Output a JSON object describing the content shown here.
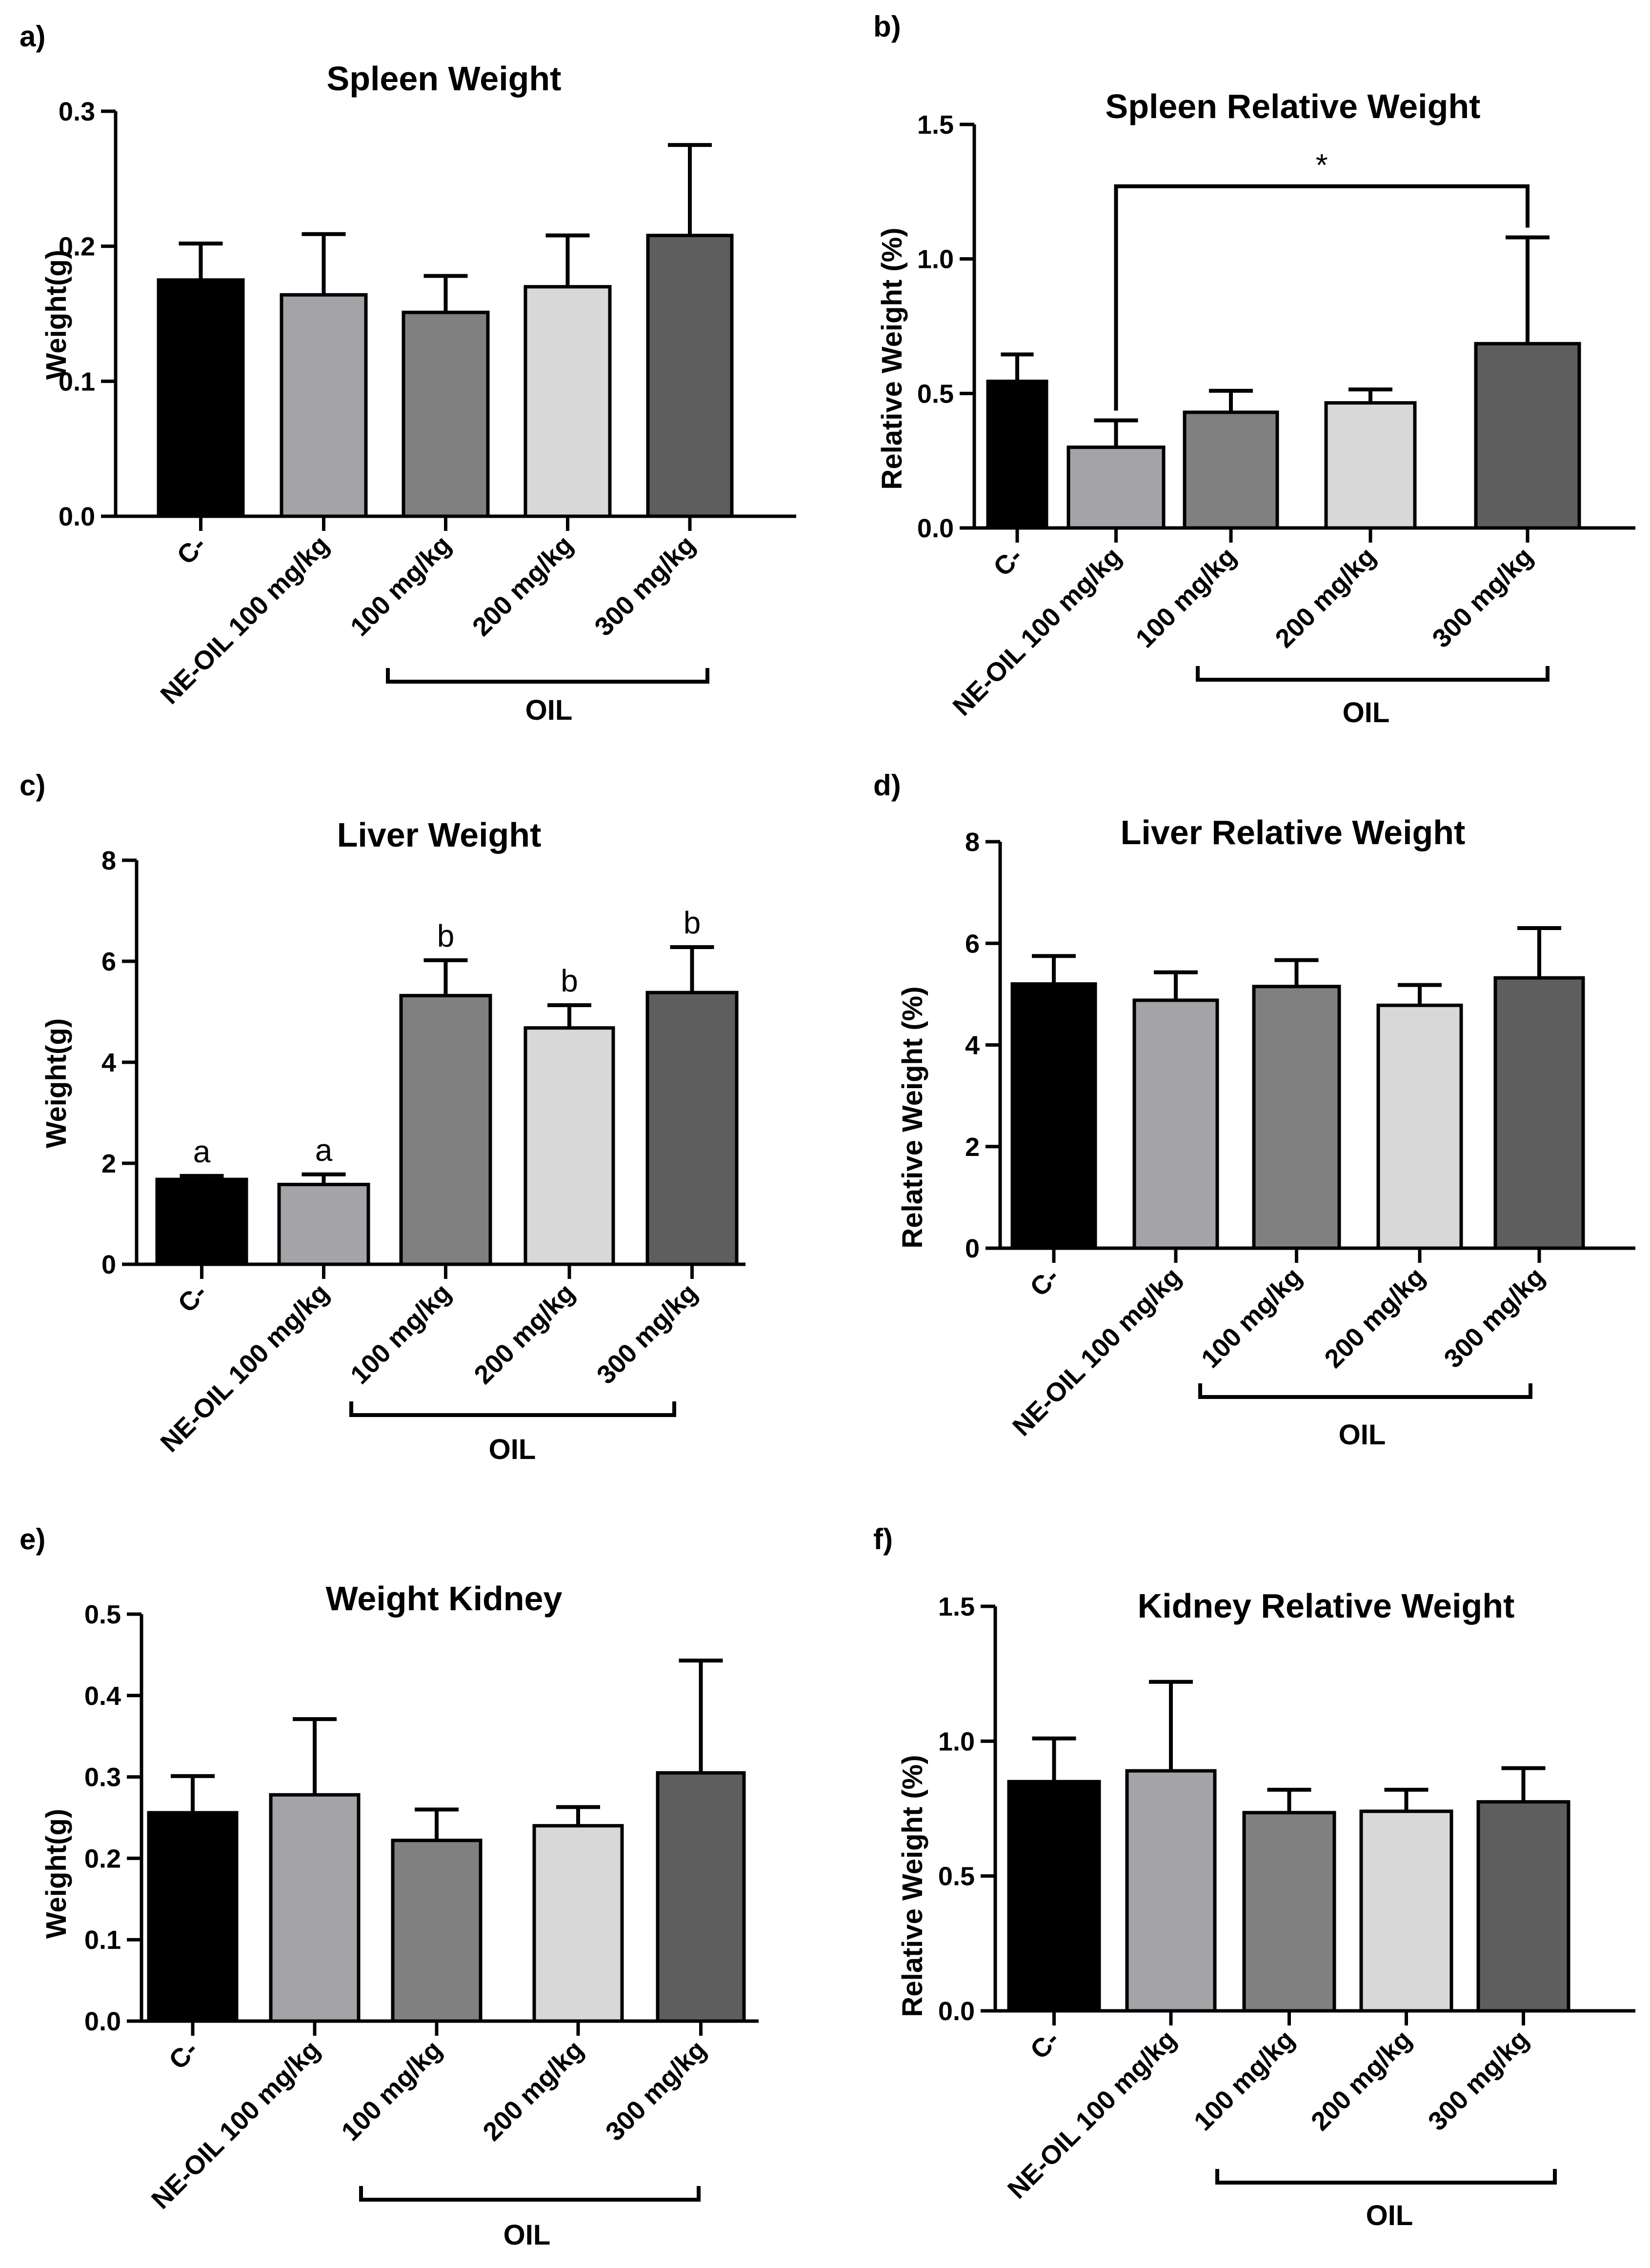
{
  "chart_data": [
    {
      "panel": "a)",
      "type": "bar",
      "title": "Spleen Weight",
      "ylabel": "Weight(g)",
      "ylim": [
        0,
        0.3
      ],
      "yticks": [
        "0.0",
        "0.1",
        "0.2",
        "0.3"
      ],
      "categories": [
        "C-",
        "NE-OIL 100 mg/kg",
        "100 mg/kg",
        "200 mg/kg",
        "300 mg/kg"
      ],
      "values": [
        0.175,
        0.164,
        0.151,
        0.17,
        0.208
      ],
      "errors": [
        0.027,
        0.045,
        0.027,
        0.038,
        0.067
      ],
      "colors": [
        "#000000",
        "#a4a4a8",
        "#808080",
        "#d8d8d8",
        "#5e5e5e"
      ],
      "group_label": "OIL",
      "annotations": [],
      "comparisons": []
    },
    {
      "panel": "b)",
      "type": "bar",
      "title": "Spleen Relative Weight",
      "ylabel": "Relative Weight (%)",
      "ylim": [
        0,
        1.5
      ],
      "yticks": [
        "0.0",
        "0.5",
        "1.0",
        "1.5"
      ],
      "categories": [
        "C-",
        "NE-OIL 100 mg/kg",
        "100 mg/kg",
        "200 mg/kg",
        "300 mg/kg"
      ],
      "values": [
        0.545,
        0.3,
        0.43,
        0.465,
        0.685
      ],
      "errors": [
        0.1,
        0.1,
        0.08,
        0.05,
        0.395
      ],
      "colors": [
        "#000000",
        "#a4a4a8",
        "#808080",
        "#d8d8d8",
        "#5e5e5e"
      ],
      "group_label": "OIL",
      "annotations": [],
      "comparisons": [
        {
          "from": 1,
          "to": 4,
          "y": 1.27,
          "label": "*"
        }
      ]
    },
    {
      "panel": "c)",
      "type": "bar",
      "title": "Liver Weight",
      "ylabel": "Weight(g)",
      "ylim": [
        0,
        8
      ],
      "yticks": [
        "0",
        "2",
        "4",
        "6",
        "8"
      ],
      "categories": [
        "C-",
        "NE-OIL 100 mg/kg",
        "100 mg/kg",
        "200 mg/kg",
        "300 mg/kg"
      ],
      "values": [
        1.68,
        1.58,
        5.32,
        4.68,
        5.38
      ],
      "errors": [
        0.07,
        0.2,
        0.7,
        0.45,
        0.9
      ],
      "colors": [
        "#000000",
        "#a4a4a8",
        "#808080",
        "#d8d8d8",
        "#5e5e5e"
      ],
      "group_label": "OIL",
      "annotations": [
        "a",
        "a",
        "b",
        "b",
        "b"
      ],
      "comparisons": []
    },
    {
      "panel": "d)",
      "type": "bar",
      "title": "Liver Relative Weight",
      "ylabel": "Relative Weight (%)",
      "ylim": [
        0,
        8
      ],
      "yticks": [
        "0",
        "2",
        "4",
        "6",
        "8"
      ],
      "categories": [
        "C-",
        "NE-OIL 100 mg/kg",
        "100 mg/kg",
        "200 mg/kg",
        "300 mg/kg"
      ],
      "values": [
        5.2,
        4.88,
        5.15,
        4.78,
        5.32
      ],
      "errors": [
        0.55,
        0.55,
        0.52,
        0.4,
        0.98
      ],
      "colors": [
        "#000000",
        "#a4a4a8",
        "#808080",
        "#d8d8d8",
        "#5e5e5e"
      ],
      "group_label": "OIL",
      "annotations": [],
      "comparisons": []
    },
    {
      "panel": "e)",
      "type": "bar",
      "title": "Weight Kidney",
      "ylabel": "Weight(g)",
      "ylim": [
        0,
        0.5
      ],
      "yticks": [
        "0.0",
        "0.1",
        "0.2",
        "0.3",
        "0.4",
        "0.5"
      ],
      "categories": [
        "C-",
        "NE-OIL 100 mg/kg",
        "100 mg/kg",
        "200 mg/kg",
        "300 mg/kg"
      ],
      "values": [
        0.256,
        0.278,
        0.222,
        0.24,
        0.305
      ],
      "errors": [
        0.045,
        0.093,
        0.038,
        0.023,
        0.138
      ],
      "colors": [
        "#000000",
        "#a4a4a8",
        "#808080",
        "#d8d8d8",
        "#5e5e5e"
      ],
      "group_label": "OIL",
      "annotations": [],
      "comparisons": []
    },
    {
      "panel": "f)",
      "type": "bar",
      "title": "Kidney Relative Weight",
      "ylabel": "Relative Weight (%)",
      "ylim": [
        0,
        1.5
      ],
      "yticks": [
        "0.0",
        "0.5",
        "1.0",
        "1.5"
      ],
      "categories": [
        "C-",
        "NE-OIL 100 mg/kg",
        "100 mg/kg",
        "200 mg/kg",
        "300 mg/kg"
      ],
      "values": [
        0.85,
        0.89,
        0.735,
        0.74,
        0.775
      ],
      "errors": [
        0.16,
        0.33,
        0.085,
        0.08,
        0.125
      ],
      "colors": [
        "#000000",
        "#a4a4a8",
        "#808080",
        "#d8d8d8",
        "#5e5e5e"
      ],
      "group_label": "OIL",
      "annotations": [],
      "comparisons": []
    }
  ]
}
